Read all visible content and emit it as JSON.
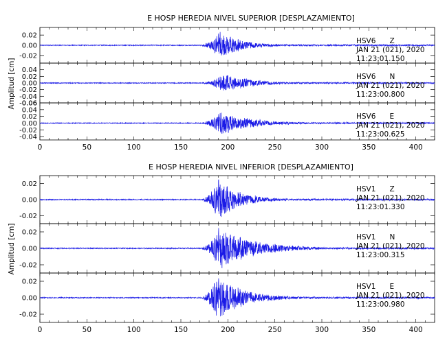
{
  "colors": {
    "trace": "#1a1ae6",
    "axis": "#000000",
    "background": "#ffffff"
  },
  "chart_data": [
    {
      "type": "line",
      "title": "E HOSP HEREDIA NIVEL SUPERIOR [DESPLAZAMIENTO]",
      "ylabel": "Amplitud [cm]",
      "xlim": [
        0,
        420
      ],
      "x_ticks": [
        "0",
        "50",
        "100",
        "150",
        "200",
        "250",
        "300",
        "350",
        "400"
      ],
      "panels": [
        {
          "station": "HSV6",
          "component": "Z",
          "date": "JAN 21 (021), 2020",
          "time": "11:23:01.150",
          "ylim": [
            -0.035,
            0.035
          ],
          "y_ticks": [
            "0.02",
            "0.00",
            "-0.02"
          ],
          "onset": 173,
          "peak_time": 192,
          "peak_amp": 0.03,
          "decay": 22,
          "noise": 0.0008
        },
        {
          "station": "HSV6",
          "component": "N",
          "date": "JAN 21 (021), 2020",
          "time": "11:23:00.800",
          "ylim": [
            -0.06,
            0.06
          ],
          "y_ticks": [
            "0.04",
            "0.02",
            "0.00",
            "-0.02",
            "-0.04",
            "-0.06"
          ],
          "onset": 173,
          "peak_time": 195,
          "peak_amp": 0.03,
          "decay": 30,
          "noise": 0.0012
        },
        {
          "station": "HSV6",
          "component": "E",
          "date": "JAN 21 (021), 2020",
          "time": "11:23:00.625",
          "ylim": [
            -0.05,
            0.06
          ],
          "y_ticks": [
            "0.06",
            "0.04",
            "0.02",
            "0.00",
            "-0.02",
            "-0.04"
          ],
          "onset": 173,
          "peak_time": 192,
          "peak_amp": 0.04,
          "decay": 30,
          "noise": 0.0012
        }
      ]
    },
    {
      "type": "line",
      "title": "E HOSP HEREDIA NIVEL INFERIOR [DESPLAZAMIENTO]",
      "ylabel": "Amplitud [cm]",
      "xlim": [
        0,
        420
      ],
      "x_ticks": [
        "0",
        "50",
        "100",
        "150",
        "200",
        "250",
        "300",
        "350",
        "400"
      ],
      "panels": [
        {
          "station": "HSV1",
          "component": "Z",
          "date": "JAN 21 (021), 2020",
          "time": "11:23:01.330",
          "ylim": [
            -0.03,
            0.03
          ],
          "y_ticks": [
            "0.02",
            "0.00",
            "-0.02"
          ],
          "onset": 173,
          "peak_time": 190,
          "peak_amp": 0.028,
          "decay": 22,
          "noise": 0.0006
        },
        {
          "station": "HSV1",
          "component": "N",
          "date": "JAN 21 (021), 2020",
          "time": "11:23:00.315",
          "ylim": [
            -0.03,
            0.03
          ],
          "y_ticks": [
            "0.02",
            "0.00",
            "-0.02"
          ],
          "onset": 173,
          "peak_time": 191,
          "peak_amp": 0.028,
          "decay": 35,
          "noise": 0.0006
        },
        {
          "station": "HSV1",
          "component": "E",
          "date": "JAN 21 (021), 2020",
          "time": "11:23:00.980",
          "ylim": [
            -0.03,
            0.03
          ],
          "y_ticks": [
            "0.02",
            "0.00",
            "-0.02"
          ],
          "onset": 173,
          "peak_time": 188,
          "peak_amp": 0.028,
          "decay": 28,
          "noise": 0.0006
        }
      ]
    }
  ]
}
